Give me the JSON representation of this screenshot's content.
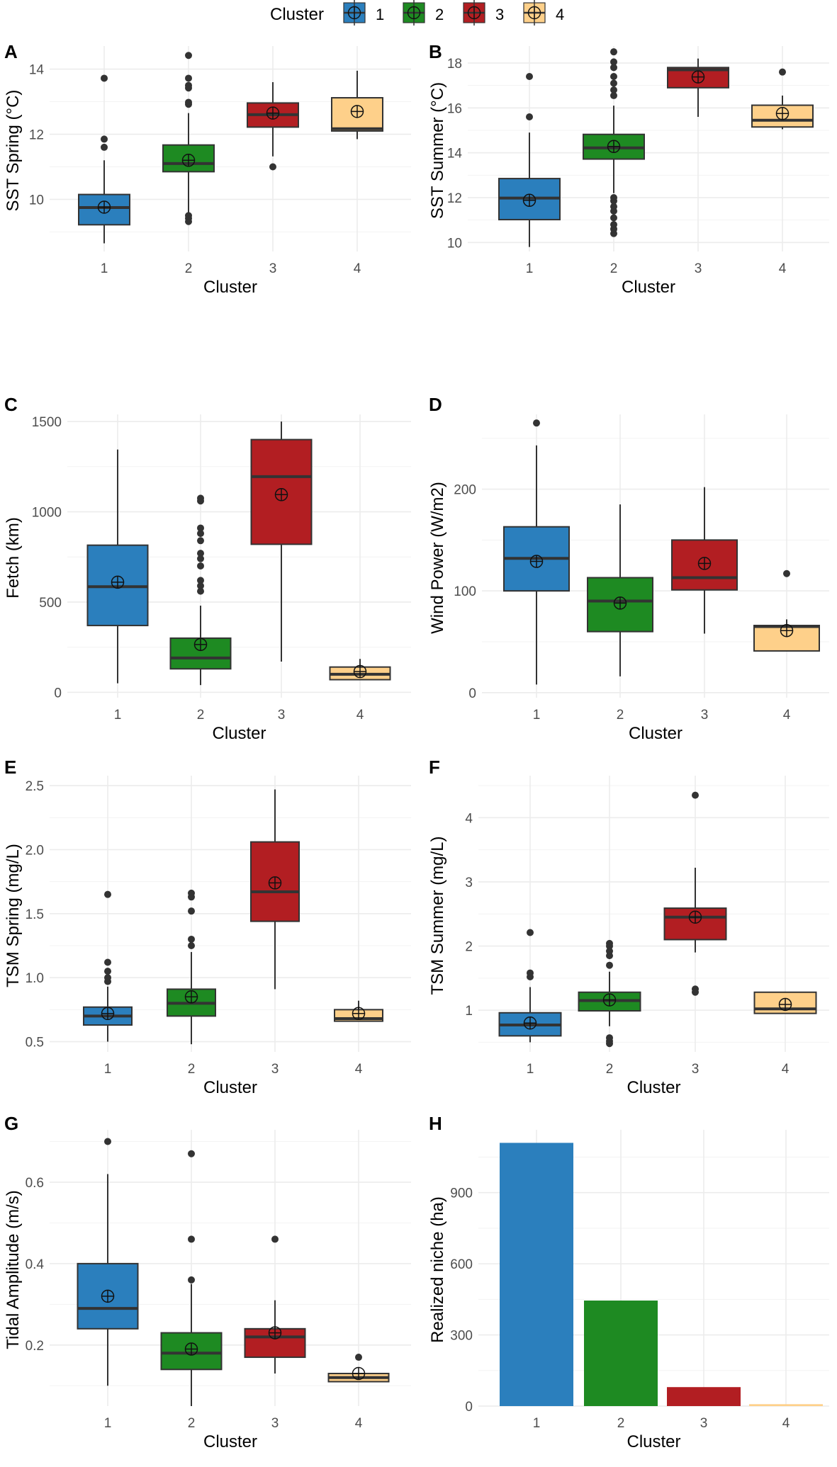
{
  "legend": {
    "title": "Cluster",
    "entries": [
      {
        "label": "1",
        "color": "#2b7fbd"
      },
      {
        "label": "2",
        "color": "#1e8a22"
      },
      {
        "label": "3",
        "color": "#b21e22"
      },
      {
        "label": "4",
        "color": "#fed08a"
      }
    ]
  },
  "chart_data": [
    {
      "panel": "A",
      "type": "box",
      "xlabel": "Cluster",
      "ylabel": "SST Spring (°C)",
      "categories": [
        "1",
        "2",
        "3",
        "4"
      ],
      "ylim": [
        8.4,
        14.6
      ],
      "yticks": [
        10,
        12,
        14
      ],
      "boxes": [
        {
          "low": 8.65,
          "q1": 9.22,
          "median": 9.75,
          "q3": 10.15,
          "high": 11.2,
          "mean": 9.76,
          "outliers": [
            11.6,
            11.85,
            13.72
          ]
        },
        {
          "low": 9.55,
          "q1": 10.85,
          "median": 11.1,
          "q3": 11.67,
          "high": 12.65,
          "mean": 11.2,
          "outliers": [
            9.32,
            9.42,
            9.5,
            12.92,
            12.98,
            13.42,
            13.5,
            13.72,
            14.42
          ]
        },
        {
          "low": 11.32,
          "q1": 12.22,
          "median": 12.6,
          "q3": 12.96,
          "high": 13.6,
          "mean": 12.65,
          "outliers": [
            11.0
          ]
        },
        {
          "low": 11.85,
          "q1": 12.1,
          "median": 12.17,
          "q3": 13.12,
          "high": 13.95,
          "mean": 12.7,
          "outliers": []
        }
      ]
    },
    {
      "panel": "B",
      "type": "box",
      "xlabel": "Cluster",
      "ylabel": "SST Summer (°C)",
      "categories": [
        "1",
        "2",
        "3",
        "4"
      ],
      "ylim": [
        9.6,
        18.6
      ],
      "yticks": [
        10,
        12,
        14,
        16,
        18
      ],
      "boxes": [
        {
          "low": 9.8,
          "q1": 11.02,
          "median": 11.98,
          "q3": 12.85,
          "high": 14.9,
          "mean": 11.88,
          "outliers": [
            15.6,
            17.4
          ]
        },
        {
          "low": 12.2,
          "q1": 13.72,
          "median": 14.22,
          "q3": 14.82,
          "high": 16.1,
          "mean": 14.28,
          "outliers": [
            10.4,
            10.6,
            10.8,
            11.1,
            11.4,
            11.6,
            11.85,
            12.0,
            16.55,
            16.8,
            17.1,
            17.4,
            17.8,
            18.05,
            18.5
          ]
        },
        {
          "low": 15.6,
          "q1": 16.9,
          "median": 17.7,
          "q3": 17.8,
          "high": 18.2,
          "mean": 17.38,
          "outliers": []
        },
        {
          "low": 15.05,
          "q1": 15.15,
          "median": 15.45,
          "q3": 16.12,
          "high": 16.55,
          "mean": 15.75,
          "outliers": [
            17.6
          ]
        }
      ]
    },
    {
      "panel": "C",
      "type": "box",
      "xlabel": "Cluster",
      "ylabel": "Fetch (km)",
      "categories": [
        "1",
        "2",
        "3",
        "4"
      ],
      "ylim": [
        -30,
        1520
      ],
      "yticks": [
        0,
        500,
        1000,
        1500
      ],
      "boxes": [
        {
          "low": 50,
          "q1": 370,
          "median": 585,
          "q3": 815,
          "high": 1345,
          "mean": 610,
          "outliers": []
        },
        {
          "low": 40,
          "q1": 130,
          "median": 190,
          "q3": 300,
          "high": 480,
          "mean": 265,
          "outliers": [
            560,
            590,
            620,
            700,
            740,
            770,
            840,
            880,
            910,
            1060,
            1075
          ]
        },
        {
          "low": 170,
          "q1": 820,
          "median": 1195,
          "q3": 1400,
          "high": 1500,
          "mean": 1095,
          "outliers": []
        },
        {
          "low": 70,
          "q1": 70,
          "median": 100,
          "q3": 140,
          "high": 185,
          "mean": 115,
          "outliers": []
        }
      ]
    },
    {
      "panel": "D",
      "type": "box",
      "xlabel": "Cluster",
      "ylabel": "Wind Power (W/m2)",
      "categories": [
        "1",
        "2",
        "3",
        "4"
      ],
      "ylim": [
        -5,
        270
      ],
      "yticks": [
        0,
        100,
        200
      ],
      "boxes": [
        {
          "low": 8,
          "q1": 100,
          "median": 132,
          "q3": 163,
          "high": 243,
          "mean": 129,
          "outliers": [
            265
          ]
        },
        {
          "low": 16,
          "q1": 60,
          "median": 90,
          "q3": 113,
          "high": 185,
          "mean": 88,
          "outliers": []
        },
        {
          "low": 58,
          "q1": 101,
          "median": 113,
          "q3": 150,
          "high": 202,
          "mean": 127,
          "outliers": []
        },
        {
          "low": 41,
          "q1": 41,
          "median": 65,
          "q3": 66,
          "high": 72,
          "mean": 61,
          "outliers": [
            117
          ]
        }
      ]
    },
    {
      "panel": "E",
      "type": "box",
      "xlabel": "Cluster",
      "ylabel": "TSM Spring (mg/L)",
      "categories": [
        "1",
        "2",
        "3",
        "4"
      ],
      "ylim": [
        0.42,
        2.55
      ],
      "yticks": [
        0.5,
        1.0,
        1.5,
        2.0,
        2.5
      ],
      "ytick_labels": [
        "0.5",
        "1.0",
        "1.5",
        "2.0",
        "2.5"
      ],
      "boxes": [
        {
          "low": 0.5,
          "q1": 0.63,
          "median": 0.7,
          "q3": 0.77,
          "high": 0.93,
          "mean": 0.72,
          "outliers": [
            0.97,
            1.0,
            1.05,
            1.12,
            1.65
          ]
        },
        {
          "low": 0.48,
          "q1": 0.7,
          "median": 0.8,
          "q3": 0.91,
          "high": 1.2,
          "mean": 0.85,
          "outliers": [
            1.25,
            1.3,
            1.52,
            1.63,
            1.66
          ]
        },
        {
          "low": 0.91,
          "q1": 1.44,
          "median": 1.67,
          "q3": 2.06,
          "high": 2.47,
          "mean": 1.74,
          "outliers": []
        },
        {
          "low": 0.66,
          "q1": 0.66,
          "median": 0.68,
          "q3": 0.75,
          "high": 0.82,
          "mean": 0.72,
          "outliers": []
        }
      ]
    },
    {
      "panel": "F",
      "type": "box",
      "xlabel": "Cluster",
      "ylabel": "TSM Summer (mg/L)",
      "categories": [
        "1",
        "2",
        "3",
        "4"
      ],
      "ylim": [
        0.35,
        4.6
      ],
      "yticks": [
        1,
        2,
        3,
        4
      ],
      "boxes": [
        {
          "low": 0.5,
          "q1": 0.6,
          "median": 0.77,
          "q3": 0.96,
          "high": 1.36,
          "mean": 0.8,
          "outliers": [
            1.52,
            1.58,
            2.21
          ]
        },
        {
          "low": 0.75,
          "q1": 0.99,
          "median": 1.15,
          "q3": 1.28,
          "high": 1.6,
          "mean": 1.16,
          "outliers": [
            0.48,
            0.52,
            0.57,
            1.7,
            1.85,
            1.92,
            2.0,
            2.04
          ]
        },
        {
          "low": 1.9,
          "q1": 2.1,
          "median": 2.45,
          "q3": 2.59,
          "high": 3.22,
          "mean": 2.45,
          "outliers": [
            1.28,
            1.33,
            4.35
          ]
        },
        {
          "low": 0.95,
          "q1": 0.95,
          "median": 1.02,
          "q3": 1.28,
          "high": 1.28,
          "mean": 1.09,
          "outliers": []
        }
      ]
    },
    {
      "panel": "G",
      "type": "box",
      "xlabel": "Cluster",
      "ylabel": "Tidal Amplitude (m/s)",
      "categories": [
        "1",
        "2",
        "3",
        "4"
      ],
      "ylim": [
        0.05,
        0.72
      ],
      "yticks": [
        0.2,
        0.4,
        0.6
      ],
      "ytick_labels": [
        "0.2",
        "0.4",
        "0.6"
      ],
      "boxes": [
        {
          "low": 0.1,
          "q1": 0.24,
          "median": 0.29,
          "q3": 0.4,
          "high": 0.62,
          "mean": 0.32,
          "outliers": [
            0.7
          ]
        },
        {
          "low": 0.05,
          "q1": 0.14,
          "median": 0.18,
          "q3": 0.23,
          "high": 0.35,
          "mean": 0.19,
          "outliers": [
            0.36,
            0.46,
            0.67
          ]
        },
        {
          "low": 0.13,
          "q1": 0.17,
          "median": 0.22,
          "q3": 0.24,
          "high": 0.31,
          "mean": 0.23,
          "outliers": [
            0.46
          ]
        },
        {
          "low": 0.11,
          "q1": 0.11,
          "median": 0.12,
          "q3": 0.13,
          "high": 0.13,
          "mean": 0.13,
          "outliers": [
            0.17
          ]
        }
      ]
    },
    {
      "panel": "H",
      "type": "bar",
      "xlabel": "Cluster",
      "ylabel": "Realized niche (ha)",
      "categories": [
        "1",
        "2",
        "3",
        "4"
      ],
      "values": [
        1110,
        445,
        80,
        8
      ],
      "ylim": [
        0,
        1150
      ],
      "yticks": [
        0,
        300,
        600,
        900
      ]
    }
  ]
}
